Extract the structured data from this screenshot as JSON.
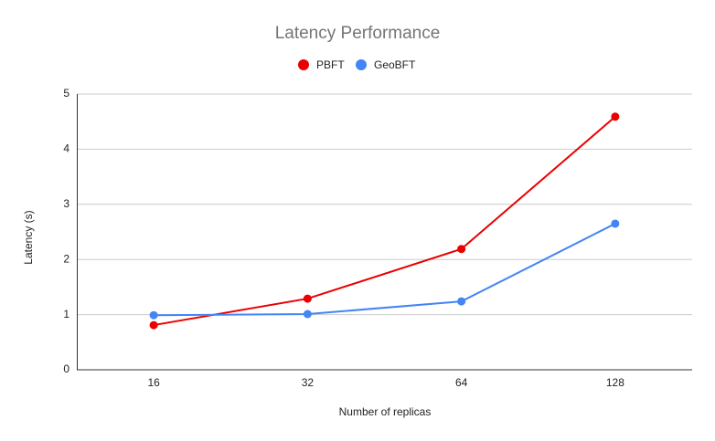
{
  "chart_data": {
    "type": "line",
    "title": "Latency Performance",
    "x_label": "Number of replicas",
    "y_label": "Latency (s)",
    "categories": [
      "16",
      "32",
      "64",
      "128"
    ],
    "series": [
      {
        "name": "PBFT",
        "color": "#ea0000",
        "values": [
          0.81,
          1.29,
          2.19,
          4.59
        ]
      },
      {
        "name": "GeoBFT",
        "color": "#4285f4",
        "values": [
          0.99,
          1.01,
          1.24,
          2.65
        ]
      }
    ],
    "ylim": [
      0,
      5
    ],
    "yticks": [
      0,
      1,
      2,
      3,
      4,
      5
    ],
    "grid": true,
    "legend": "top"
  }
}
